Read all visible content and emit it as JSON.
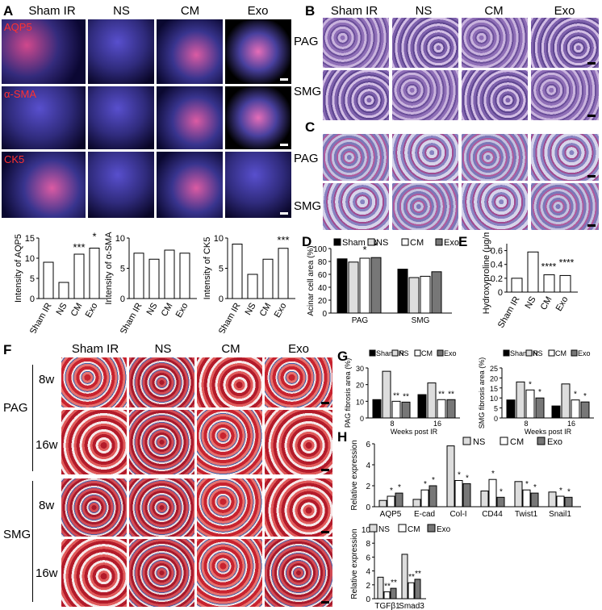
{
  "groups": [
    "Sham IR",
    "NS",
    "CM",
    "Exo"
  ],
  "panelA": {
    "letter": "A",
    "channels": [
      "AQP5",
      "α-SMA",
      "CK5"
    ],
    "ylabels": [
      "Intensity of AQP5",
      "Intensity of α-SMA",
      "Intensity of CK5"
    ],
    "sig": [
      "***",
      "*",
      "***"
    ]
  },
  "panelB": {
    "letter": "B",
    "rows": [
      "PAG",
      "SMG"
    ]
  },
  "panelC": {
    "letter": "C",
    "rows": [
      "PAG",
      "SMG"
    ]
  },
  "panelD": {
    "letter": "D",
    "ylabel": "Acinar cell area (%)",
    "xcats": [
      "PAG",
      "SMG"
    ],
    "sig": "*"
  },
  "panelE": {
    "letter": "E",
    "ylabel": "Hydroxyproline (μg/mg)",
    "sig": "****"
  },
  "panelF": {
    "letter": "F",
    "tissues": [
      "PAG",
      "SMG"
    ],
    "weeks": [
      "8w",
      "16w"
    ]
  },
  "panelG": {
    "letter": "G",
    "ylabels": [
      "PAG fibrosis area (%)",
      "SMG fibrosis area (%)"
    ],
    "xlabel": "Weeks post IR",
    "ticks": [
      "8",
      "16"
    ],
    "sig1": "**",
    "sig2": "*"
  },
  "panelH": {
    "letter": "H",
    "ylabel": "Relative expression",
    "legend": [
      "NS",
      "CM",
      "Exo"
    ],
    "genes_top": [
      "AQP5",
      "E-cad",
      "Col-I",
      "CD44",
      "Twist1",
      "Snail1"
    ],
    "genes_bottom": [
      "TGFβ1",
      "Smad3"
    ]
  },
  "chart_data": [
    {
      "type": "bar",
      "categories": [
        "Sham IR",
        "NS",
        "CM",
        "Exo"
      ],
      "values": [
        9,
        4,
        11,
        12.5
      ],
      "ylabel": "Intensity of AQP5",
      "ylim": [
        0,
        15
      ],
      "yticks": [
        0,
        5,
        10,
        15
      ]
    },
    {
      "type": "bar",
      "categories": [
        "Sham IR",
        "NS",
        "CM",
        "Exo"
      ],
      "values": [
        7.5,
        6.5,
        8,
        7.5
      ],
      "ylabel": "Intensity of α-SMA",
      "ylim": [
        0,
        10
      ],
      "yticks": [
        0,
        5,
        10
      ]
    },
    {
      "type": "bar",
      "categories": [
        "Sham IR",
        "NS",
        "CM",
        "Exo"
      ],
      "values": [
        9,
        4,
        6.5,
        8.3
      ],
      "ylabel": "Intensity of CK5",
      "ylim": [
        0,
        10
      ],
      "yticks": [
        0,
        5,
        10
      ]
    },
    {
      "type": "bar",
      "categories": [
        "PAG",
        "SMG"
      ],
      "series": [
        {
          "name": "Sham IR",
          "values": [
            84,
            68
          ]
        },
        {
          "name": "NS",
          "values": [
            79,
            55
          ]
        },
        {
          "name": "CM",
          "values": [
            85,
            57
          ]
        },
        {
          "name": "Exo",
          "values": [
            86,
            64
          ]
        }
      ],
      "ylabel": "Acinar cell area (%)",
      "ylim": [
        0,
        100
      ],
      "yticks": [
        0,
        20,
        40,
        60,
        80,
        100
      ]
    },
    {
      "type": "bar",
      "categories": [
        "Sham IR",
        "NS",
        "CM",
        "Exo"
      ],
      "values": [
        0.2,
        0.58,
        0.25,
        0.24
      ],
      "ylabel": "Hydroxyproline (μg/mg)",
      "ylim": [
        0,
        0.7
      ],
      "yticks": [
        0,
        0.2,
        0.4,
        0.6
      ]
    },
    {
      "type": "bar",
      "categories": [
        "8",
        "16"
      ],
      "series": [
        {
          "name": "Sham IR",
          "values": [
            11,
            14
          ]
        },
        {
          "name": "NS",
          "values": [
            28,
            21
          ]
        },
        {
          "name": "CM",
          "values": [
            10,
            11
          ]
        },
        {
          "name": "Exo",
          "values": [
            9.5,
            11
          ]
        }
      ],
      "ylabel": "PAG fibrosis area (%)",
      "xlabel": "Weeks post IR",
      "ylim": [
        0,
        30
      ],
      "yticks": [
        0,
        10,
        20,
        30
      ]
    },
    {
      "type": "bar",
      "categories": [
        "8",
        "16"
      ],
      "series": [
        {
          "name": "Sham IR",
          "values": [
            9,
            6
          ]
        },
        {
          "name": "NS",
          "values": [
            18,
            17
          ]
        },
        {
          "name": "CM",
          "values": [
            14,
            9
          ]
        },
        {
          "name": "Exo",
          "values": [
            10,
            8
          ]
        }
      ],
      "ylabel": "SMG fibrosis area (%)",
      "xlabel": "Weeks post IR",
      "ylim": [
        0,
        25
      ],
      "yticks": [
        0,
        5,
        10,
        15,
        20,
        25
      ]
    },
    {
      "type": "bar",
      "categories": [
        "AQP5",
        "E-cad",
        "Col-I",
        "CD44",
        "Twist1",
        "Snail1"
      ],
      "series": [
        {
          "name": "NS",
          "values": [
            0.6,
            0.7,
            5.8,
            1.5,
            2.4,
            1.4
          ]
        },
        {
          "name": "CM",
          "values": [
            1.0,
            1.6,
            2.5,
            2.6,
            1.6,
            1.0
          ]
        },
        {
          "name": "Exo",
          "values": [
            1.3,
            2.0,
            2.2,
            0.9,
            1.3,
            0.9
          ]
        }
      ],
      "ylabel": "Relative expression",
      "ylim": [
        0,
        6
      ],
      "yticks": [
        0,
        2,
        4,
        6
      ]
    },
    {
      "type": "bar",
      "categories": [
        "TGFβ1",
        "Smad3"
      ],
      "series": [
        {
          "name": "NS",
          "values": [
            3.1,
            6.4
          ]
        },
        {
          "name": "CM",
          "values": [
            1.0,
            2.3
          ]
        },
        {
          "name": "Exo",
          "values": [
            1.5,
            2.8
          ]
        }
      ],
      "ylabel": "Relative expression",
      "ylim": [
        0,
        10
      ],
      "yticks": [
        0,
        2,
        4,
        6,
        8,
        10
      ]
    }
  ]
}
